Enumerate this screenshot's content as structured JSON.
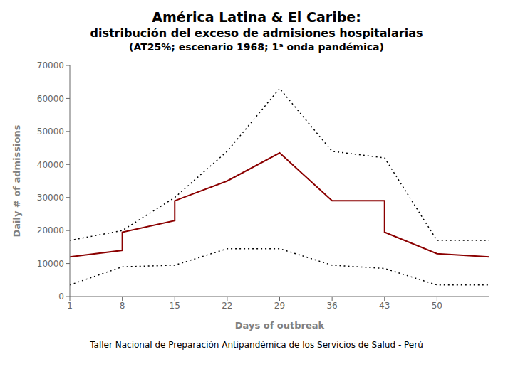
{
  "chart_data": {
    "type": "line",
    "title": [
      "América Latina & El Caribe:",
      "distribución del exceso de admisiones hospitalarias",
      "(AT25%; escenario 1968; 1ᵃ onda pandémica)"
    ],
    "xlabel": "Days of outbreak",
    "ylabel": "Daily # of admissions",
    "annotations": [
      "Taller Nacional de Preparación Antipandémica de los Servicios de Salud - Perú"
    ],
    "xlim": [
      1,
      57
    ],
    "xticks": [
      1,
      8,
      15,
      22,
      29,
      36,
      43,
      50
    ],
    "ylim": [
      0,
      70000
    ],
    "yticks": [
      0,
      10000,
      20000,
      30000,
      40000,
      50000,
      60000,
      70000
    ],
    "grid": false,
    "series": [
      {
        "color": "#8B0000",
        "line_style": "solid",
        "x": [
          1,
          8,
          8,
          15,
          15,
          22,
          29,
          36,
          43,
          43,
          50,
          57
        ],
        "values": [
          12000,
          14000,
          19500,
          23000,
          29000,
          35000,
          43500,
          29000,
          29000,
          19500,
          13000,
          12000
        ]
      },
      {
        "color": "#000000",
        "line_style": "dotted",
        "x": [
          1,
          8,
          15,
          22,
          29,
          36,
          43,
          50,
          57
        ],
        "values": [
          17000,
          20000,
          30000,
          44000,
          63000,
          44000,
          42000,
          17000,
          17000
        ]
      },
      {
        "color": "#000000",
        "line_style": "dotted",
        "x": [
          1,
          8,
          15,
          22,
          29,
          36,
          43,
          50,
          57
        ],
        "values": [
          3500,
          9000,
          9500,
          14500,
          14500,
          9500,
          8500,
          3500,
          3500
        ]
      }
    ]
  }
}
